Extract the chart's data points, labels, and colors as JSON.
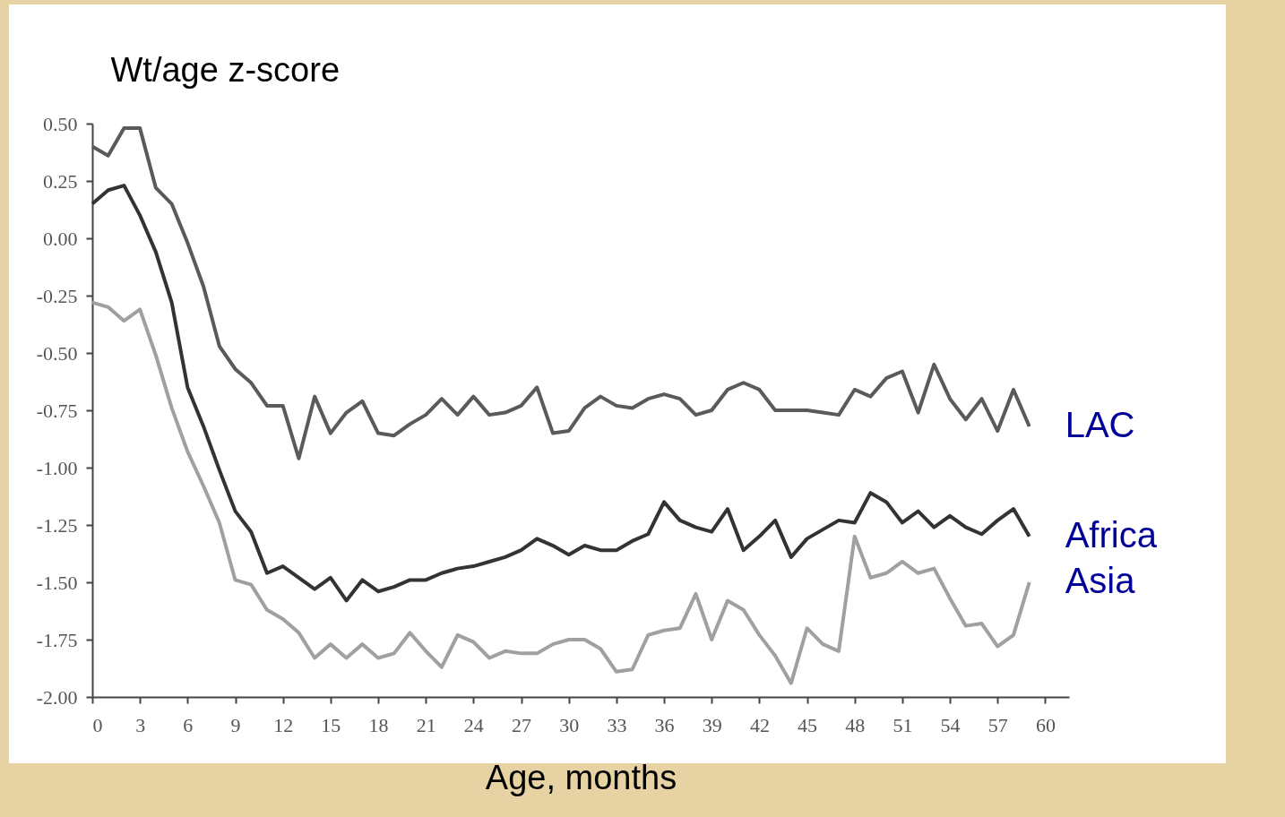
{
  "chart_data": {
    "type": "line",
    "ylabel": "Wt/age z-score",
    "xlabel": "Age, months",
    "x": [
      0,
      1,
      2,
      3,
      4,
      5,
      6,
      7,
      8,
      9,
      10,
      11,
      12,
      13,
      14,
      15,
      16,
      17,
      18,
      19,
      20,
      21,
      22,
      23,
      24,
      25,
      26,
      27,
      28,
      29,
      30,
      31,
      32,
      33,
      34,
      35,
      36,
      37,
      38,
      39,
      40,
      41,
      42,
      43,
      44,
      45,
      46,
      47,
      48,
      49,
      50,
      51,
      52,
      53,
      54,
      55,
      56,
      57,
      58,
      59
    ],
    "xlim": [
      0,
      61.5
    ],
    "xticks": [
      0,
      3,
      6,
      9,
      12,
      15,
      18,
      21,
      24,
      27,
      30,
      33,
      36,
      39,
      42,
      45,
      48,
      51,
      54,
      57,
      60
    ],
    "ylim": [
      -2,
      0.5
    ],
    "yticks": [
      {
        "value": 0.5,
        "label": "0.50"
      },
      {
        "value": 0.25,
        "label": "0.25"
      },
      {
        "value": 0,
        "label": "0.00"
      },
      {
        "value": -0.25,
        "label": "-0.25"
      },
      {
        "value": -0.5,
        "label": "-0.50"
      },
      {
        "value": -0.75,
        "label": "-0.75"
      },
      {
        "value": -1,
        "label": "-1.00"
      },
      {
        "value": -1.25,
        "label": "-1.25"
      },
      {
        "value": -1.5,
        "label": "-1.50"
      },
      {
        "value": -1.75,
        "label": "-1.75"
      },
      {
        "value": -2,
        "label": "-2.00"
      }
    ],
    "grid": false,
    "series": [
      {
        "name": "LAC",
        "color": "#5a5a5a",
        "values": [
          0.4,
          0.36,
          0.48,
          0.48,
          0.22,
          0.15,
          -0.02,
          -0.21,
          -0.47,
          -0.57,
          -0.63,
          -0.73,
          -0.73,
          -0.96,
          -0.69,
          -0.85,
          -0.76,
          -0.71,
          -0.85,
          -0.86,
          -0.81,
          -0.77,
          -0.7,
          -0.77,
          -0.69,
          -0.77,
          -0.76,
          -0.73,
          -0.65,
          -0.85,
          -0.84,
          -0.74,
          -0.69,
          -0.73,
          -0.74,
          -0.7,
          -0.68,
          -0.7,
          -0.77,
          -0.75,
          -0.66,
          -0.63,
          -0.66,
          -0.75,
          -0.75,
          -0.75,
          -0.76,
          -0.77,
          -0.66,
          -0.69,
          -0.61,
          -0.58,
          -0.76,
          -0.55,
          -0.7,
          -0.79,
          -0.7,
          -0.84,
          -0.66,
          -0.82
        ]
      },
      {
        "name": "Africa",
        "color": "#333333",
        "values": [
          0.15,
          0.21,
          0.23,
          0.1,
          -0.06,
          -0.28,
          -0.65,
          -0.82,
          -1.01,
          -1.19,
          -1.28,
          -1.46,
          -1.43,
          -1.48,
          -1.53,
          -1.48,
          -1.58,
          -1.49,
          -1.54,
          -1.52,
          -1.49,
          -1.49,
          -1.46,
          -1.44,
          -1.43,
          -1.41,
          -1.39,
          -1.36,
          -1.31,
          -1.34,
          -1.38,
          -1.34,
          -1.36,
          -1.36,
          -1.32,
          -1.29,
          -1.15,
          -1.23,
          -1.26,
          -1.28,
          -1.18,
          -1.36,
          -1.3,
          -1.23,
          -1.39,
          -1.31,
          -1.27,
          -1.23,
          -1.24,
          -1.11,
          -1.15,
          -1.24,
          -1.19,
          -1.26,
          -1.21,
          -1.26,
          -1.29,
          -1.23,
          -1.18,
          -1.3
        ]
      },
      {
        "name": "Asia",
        "color": "#a0a0a0",
        "values": [
          -0.28,
          -0.3,
          -0.36,
          -0.31,
          -0.51,
          -0.74,
          -0.93,
          -1.08,
          -1.24,
          -1.49,
          -1.51,
          -1.62,
          -1.66,
          -1.72,
          -1.83,
          -1.77,
          -1.83,
          -1.77,
          -1.83,
          -1.81,
          -1.72,
          -1.8,
          -1.87,
          -1.73,
          -1.76,
          -1.83,
          -1.8,
          -1.81,
          -1.81,
          -1.77,
          -1.75,
          -1.75,
          -1.79,
          -1.89,
          -1.88,
          -1.73,
          -1.71,
          -1.7,
          -1.55,
          -1.75,
          -1.58,
          -1.62,
          -1.73,
          -1.82,
          -1.94,
          -1.7,
          -1.77,
          -1.8,
          -1.3,
          -1.48,
          -1.46,
          -1.41,
          -1.46,
          -1.44,
          -1.57,
          -1.69,
          -1.68,
          -1.78,
          -1.73,
          -1.5
        ]
      }
    ]
  }
}
